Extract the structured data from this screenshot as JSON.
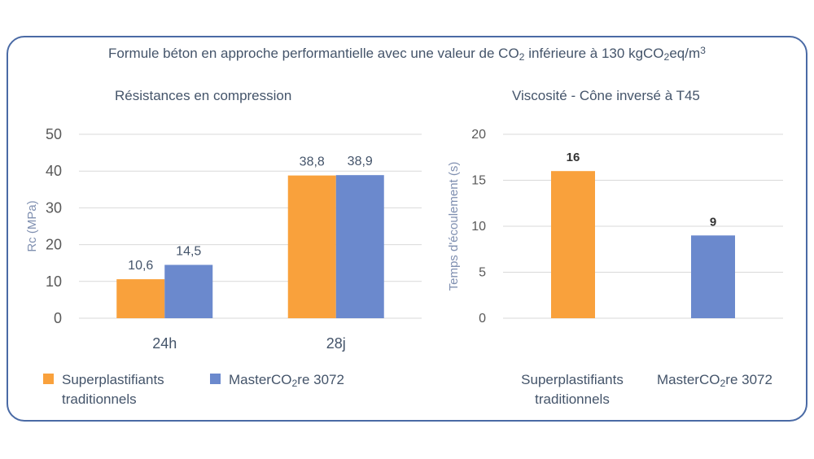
{
  "title": {
    "prefix": "Formule béton en approche performantielle avec une valeur de CO",
    "sub": "2",
    "middle": " inférieure à 130 kgCO",
    "sub2": "2",
    "suffix": "eq/m",
    "sup": "3"
  },
  "colors": {
    "orange": "#f9a13c",
    "blue": "#6b89cd",
    "grid": "#d9d9d9",
    "border": "#4a6aa5"
  },
  "chart_data": [
    {
      "type": "bar",
      "title": "Résistances en compression",
      "ylabel": "Rc (MPa)",
      "xlabel": "",
      "ylim": [
        0,
        50
      ],
      "yticks": [
        0,
        10,
        20,
        30,
        40,
        50
      ],
      "categories": [
        "24h",
        "28j"
      ],
      "series": [
        {
          "name": "Superplastifiants traditionnels",
          "values": [
            10.6,
            38.8
          ],
          "labels": [
            "10,6",
            "38,8"
          ],
          "color": "#f9a13c"
        },
        {
          "name": "MasterCO2re 3072",
          "values": [
            14.5,
            38.9
          ],
          "labels": [
            "14,5",
            "38,9"
          ],
          "color": "#6b89cd"
        }
      ]
    },
    {
      "type": "bar",
      "title": "Viscosité - Cône inversé à T45",
      "ylabel": "Temps d'écoulement (s)",
      "xlabel": "",
      "ylim": [
        0,
        20
      ],
      "yticks": [
        0,
        5,
        10,
        15,
        20
      ],
      "categories": [
        "Superplastifiants traditionnels",
        "MasterCO2re 3072"
      ],
      "values": [
        16,
        9
      ],
      "labels": [
        "16",
        "9"
      ],
      "colors": [
        "#f9a13c",
        "#6b89cd"
      ]
    }
  ],
  "legend": [
    {
      "line1": "Superplastifiants",
      "line2": "traditionnels"
    },
    {
      "prefix": "MasterCO",
      "sub": "2",
      "suffix": "re 3072"
    }
  ],
  "cat2": [
    {
      "line1": "Superplastifiants",
      "line2": "traditionnels"
    },
    {
      "prefix": "MasterCO",
      "sub": "2",
      "suffix": "re 3072"
    }
  ]
}
